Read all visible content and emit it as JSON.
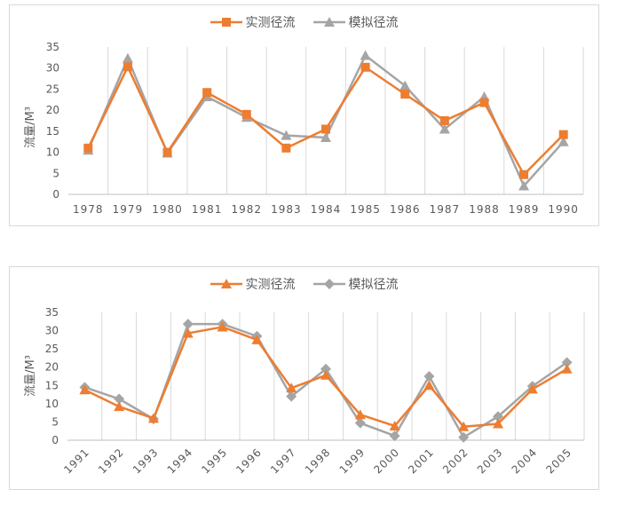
{
  "chart_data": [
    {
      "type": "line",
      "title": "",
      "xlabel": "",
      "ylabel": "流量/M³",
      "ylim": [
        0,
        35
      ],
      "yticks": [
        0,
        5,
        10,
        15,
        20,
        25,
        30,
        35
      ],
      "grid": "vertical",
      "legend_position": "top",
      "x_label_rotation": 0,
      "categories": [
        "1978",
        "1979",
        "1980",
        "1981",
        "1982",
        "1983",
        "1984",
        "1985",
        "1986",
        "1987",
        "1988",
        "1989",
        "1990"
      ],
      "series": [
        {
          "name": "实测径流",
          "color": "#ED7D31",
          "marker": "square",
          "values": [
            11.0,
            30.3,
            10.0,
            24.2,
            19.0,
            11.0,
            15.5,
            30.2,
            23.8,
            17.5,
            21.8,
            4.7,
            14.2
          ]
        },
        {
          "name": "模拟径流",
          "color": "#A5A5A5",
          "marker": "triangle",
          "values": [
            10.5,
            32.3,
            9.8,
            23.2,
            18.3,
            14.0,
            13.5,
            33.0,
            25.8,
            15.5,
            23.2,
            2.0,
            12.5
          ]
        }
      ]
    },
    {
      "type": "line",
      "title": "",
      "xlabel": "",
      "ylabel": "流量/M³",
      "ylim": [
        0,
        35
      ],
      "yticks": [
        0,
        5,
        10,
        15,
        20,
        25,
        30,
        35
      ],
      "grid": "vertical",
      "legend_position": "top",
      "x_label_rotation": -45,
      "categories": [
        "1991",
        "1992",
        "1993",
        "1994",
        "1995",
        "1996",
        "1997",
        "1998",
        "1999",
        "2000",
        "2001",
        "2002",
        "2003",
        "2004",
        "2005"
      ],
      "series": [
        {
          "name": "实测径流",
          "color": "#ED7D31",
          "marker": "triangle",
          "values": [
            13.8,
            9.2,
            6.0,
            29.3,
            31.0,
            27.5,
            14.3,
            17.8,
            7.0,
            3.9,
            15.0,
            3.7,
            4.5,
            14.0,
            19.5
          ]
        },
        {
          "name": "模拟径流",
          "color": "#A5A5A5",
          "marker": "diamond",
          "values": [
            14.5,
            11.3,
            5.8,
            31.8,
            31.8,
            28.5,
            12.0,
            19.5,
            4.7,
            1.2,
            17.5,
            0.8,
            6.5,
            14.8,
            21.3
          ]
        }
      ]
    }
  ]
}
